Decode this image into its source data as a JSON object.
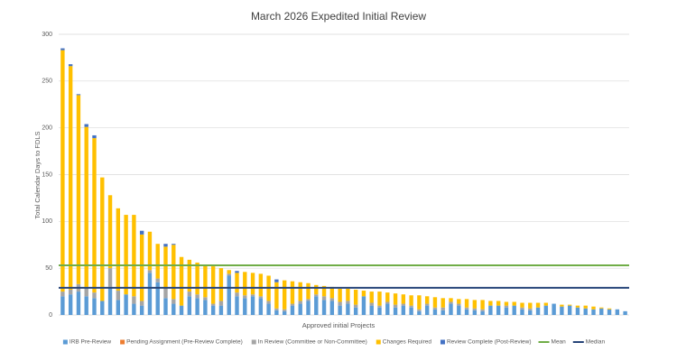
{
  "chart_data": {
    "type": "stacked_bar",
    "title": "March 2026 Expedited Initial Review",
    "x_label": "Approved initial Projects",
    "y_label": "Total Calendar Days to FDLS",
    "ylim": [
      0,
      300
    ],
    "yticks": [
      0,
      50,
      100,
      150,
      200,
      250,
      300
    ],
    "grid": true,
    "series": [
      {
        "name": "IRB Pre-Review",
        "color": "#5b9bd5",
        "values": [
          20,
          22,
          25,
          20,
          18,
          15,
          30,
          16,
          22,
          12,
          10,
          45,
          35,
          18,
          12,
          10,
          20,
          18,
          16,
          10,
          10,
          42,
          20,
          18,
          20,
          18,
          12,
          5,
          4,
          10,
          12,
          15,
          20,
          16,
          15,
          10,
          12,
          8,
          20,
          10,
          8,
          12,
          8,
          10,
          8,
          4,
          10,
          6,
          5,
          12,
          10,
          6,
          5,
          4,
          10,
          10,
          8,
          10,
          6,
          5,
          8,
          10,
          12,
          9,
          10,
          8,
          7,
          6,
          7,
          6,
          6,
          4
        ]
      },
      {
        "name": "Pending Assignment (Pre-Review Complete)",
        "color": "#ed7d31",
        "values": [
          0,
          0,
          0,
          0,
          0,
          0,
          0,
          0,
          0,
          0,
          0,
          0,
          0,
          0,
          0,
          0,
          0,
          0,
          0,
          0,
          0,
          0,
          0,
          0,
          0,
          0,
          0,
          0,
          0,
          0,
          0,
          0,
          0,
          0,
          0,
          0,
          0,
          0,
          0,
          0,
          0,
          0,
          0,
          0,
          0,
          0,
          0,
          0,
          0,
          0,
          0,
          0,
          0,
          0,
          0,
          0,
          0,
          0,
          0,
          0,
          0,
          0,
          0,
          0,
          0,
          0,
          0,
          0,
          0,
          0,
          0,
          0
        ]
      },
      {
        "name": "In Review (Committee or Non-Committee)",
        "color": "#a5a5a5",
        "values": [
          5,
          5,
          8,
          10,
          6,
          0,
          20,
          10,
          0,
          8,
          5,
          3,
          4,
          10,
          5,
          0,
          5,
          4,
          3,
          2,
          5,
          2,
          4,
          3,
          2,
          2,
          3,
          2,
          2,
          2,
          3,
          2,
          2,
          4,
          3,
          4,
          3,
          3,
          0,
          3,
          2,
          2,
          3,
          2,
          2,
          2,
          2,
          2,
          3,
          2,
          2,
          2,
          2,
          2,
          0,
          0,
          2,
          0,
          2,
          2,
          0,
          0,
          0,
          0,
          0,
          0,
          0,
          0,
          0,
          0,
          0,
          0
        ]
      },
      {
        "name": "Changes Required",
        "color": "#ffc000",
        "values": [
          258,
          239,
          202,
          171,
          165,
          132,
          78,
          88,
          85,
          87,
          71,
          41,
          37,
          45,
          58,
          52,
          34,
          34,
          35,
          40,
          35,
          4,
          21,
          25,
          23,
          24,
          27,
          28,
          31,
          24,
          20,
          17,
          10,
          11,
          12,
          14,
          13,
          16,
          6,
          12,
          15,
          10,
          12,
          10,
          11,
          15,
          8,
          11,
          10,
          4,
          5,
          9,
          9,
          10,
          5,
          5,
          4,
          4,
          5,
          6,
          5,
          3,
          0,
          2,
          1,
          2,
          3,
          3,
          1,
          1,
          0,
          0
        ]
      },
      {
        "name": "Review Complete (Post-Review)",
        "color": "#4472c4",
        "values": [
          2,
          2,
          1,
          3,
          3,
          0,
          0,
          0,
          0,
          0,
          4,
          0,
          0,
          3,
          1,
          0,
          0,
          0,
          0,
          0,
          0,
          0,
          2,
          0,
          0,
          0,
          0,
          3,
          0,
          0,
          0,
          0,
          0,
          0,
          0,
          0,
          0,
          0,
          0,
          0,
          0,
          0,
          0,
          0,
          0,
          0,
          0,
          0,
          0,
          0,
          0,
          0,
          0,
          0,
          0,
          0,
          0,
          0,
          0,
          0,
          0,
          0,
          0,
          0,
          0,
          0,
          0,
          0,
          0,
          0,
          0,
          0
        ]
      }
    ],
    "reference_lines": [
      {
        "name": "Mean",
        "color": "#70ad47",
        "value": 53
      },
      {
        "name": "Median",
        "color": "#264478",
        "value": 29
      }
    ]
  }
}
